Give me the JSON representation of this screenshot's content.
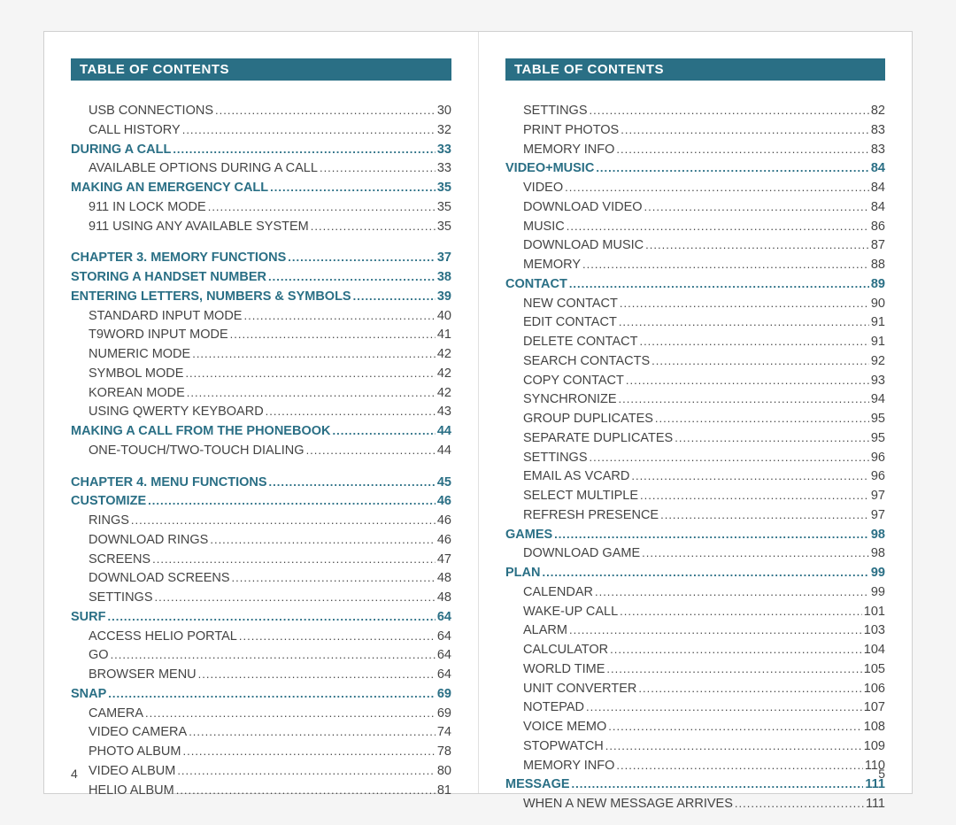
{
  "header_title": "TABLE OF CONTENTS",
  "colors": {
    "accent": "#2a6f85",
    "text": "#444444",
    "bg": "#ffffff"
  },
  "font": {
    "family": "Arial",
    "row_size_pt": 11,
    "header_size_pt": 12
  },
  "left_page": {
    "number": "4",
    "entries": [
      {
        "label": "USB CONNECTIONS",
        "page": "30",
        "type": "sub",
        "indent": 1
      },
      {
        "label": "CALL HISTORY",
        "page": "32",
        "type": "sub",
        "indent": 1
      },
      {
        "label": "DURING A CALL",
        "page": "33",
        "type": "section",
        "indent": 0
      },
      {
        "label": "AVAILABLE OPTIONS DURING A CALL",
        "page": "33",
        "type": "sub",
        "indent": 1
      },
      {
        "label": "MAKING AN EMERGENCY CALL",
        "page": "35",
        "type": "section",
        "indent": 0
      },
      {
        "label": "911 IN LOCK MODE",
        "page": "35",
        "type": "sub",
        "indent": 1
      },
      {
        "label": "911 USING ANY AVAILABLE SYSTEM",
        "page": "35",
        "type": "sub",
        "indent": 1
      },
      {
        "label": "",
        "page": "",
        "type": "gap",
        "indent": 0
      },
      {
        "label": "CHAPTER 3. MEMORY FUNCTIONS",
        "page": "37",
        "type": "section",
        "indent": 0
      },
      {
        "label": "STORING A HANDSET NUMBER",
        "page": "38",
        "type": "section",
        "indent": 0
      },
      {
        "label": "ENTERING LETTERS, NUMBERS & SYMBOLS",
        "page": "39",
        "type": "section",
        "indent": 0
      },
      {
        "label": "STANDARD INPUT MODE",
        "page": "40",
        "type": "sub",
        "indent": 1
      },
      {
        "label": "T9WORD INPUT MODE",
        "page": "41",
        "type": "sub",
        "indent": 1
      },
      {
        "label": "NUMERIC MODE",
        "page": "42",
        "type": "sub",
        "indent": 1
      },
      {
        "label": "SYMBOL MODE",
        "page": "42",
        "type": "sub",
        "indent": 1
      },
      {
        "label": "KOREAN MODE",
        "page": "42",
        "type": "sub",
        "indent": 1
      },
      {
        "label": "USING QWERTY KEYBOARD",
        "page": "43",
        "type": "sub",
        "indent": 1
      },
      {
        "label": "MAKING A CALL FROM THE PHONEBOOK",
        "page": "44",
        "type": "section",
        "indent": 0
      },
      {
        "label": "ONE-TOUCH/TWO-TOUCH DIALING",
        "page": "44",
        "type": "sub",
        "indent": 1
      },
      {
        "label": "",
        "page": "",
        "type": "gap",
        "indent": 0
      },
      {
        "label": "CHAPTER 4. MENU FUNCTIONS",
        "page": "45",
        "type": "section",
        "indent": 0
      },
      {
        "label": "CUSTOMIZE",
        "page": "46",
        "type": "section",
        "indent": 0
      },
      {
        "label": "RINGS",
        "page": "46",
        "type": "sub",
        "indent": 1
      },
      {
        "label": "DOWNLOAD RINGS",
        "page": "46",
        "type": "sub",
        "indent": 1
      },
      {
        "label": "SCREENS",
        "page": "47",
        "type": "sub",
        "indent": 1
      },
      {
        "label": "DOWNLOAD SCREENS",
        "page": "48",
        "type": "sub",
        "indent": 1
      },
      {
        "label": "SETTINGS",
        "page": "48",
        "type": "sub",
        "indent": 1
      },
      {
        "label": "SURF",
        "page": "64",
        "type": "section",
        "indent": 0
      },
      {
        "label": "ACCESS HELIO PORTAL",
        "page": "64",
        "type": "sub",
        "indent": 1
      },
      {
        "label": "GO",
        "page": "64",
        "type": "sub",
        "indent": 1
      },
      {
        "label": "BROWSER MENU",
        "page": "64",
        "type": "sub",
        "indent": 1
      },
      {
        "label": "SNAP",
        "page": "69",
        "type": "section",
        "indent": 0
      },
      {
        "label": "CAMERA",
        "page": "69",
        "type": "sub",
        "indent": 1
      },
      {
        "label": "VIDEO CAMERA",
        "page": "74",
        "type": "sub",
        "indent": 1
      },
      {
        "label": "PHOTO ALBUM",
        "page": "78",
        "type": "sub",
        "indent": 1
      },
      {
        "label": "VIDEO ALBUM",
        "page": "80",
        "type": "sub",
        "indent": 1
      },
      {
        "label": "HELIO ALBUM",
        "page": "81",
        "type": "sub",
        "indent": 1
      }
    ]
  },
  "right_page": {
    "number": "5",
    "entries": [
      {
        "label": "SETTINGS",
        "page": "82",
        "type": "sub",
        "indent": 1
      },
      {
        "label": "PRINT PHOTOS",
        "page": "83",
        "type": "sub",
        "indent": 1
      },
      {
        "label": "MEMORY INFO",
        "page": "83",
        "type": "sub",
        "indent": 1
      },
      {
        "label": "VIDEO+MUSIC",
        "page": "84",
        "type": "section",
        "indent": 0
      },
      {
        "label": "VIDEO",
        "page": "84",
        "type": "sub",
        "indent": 1
      },
      {
        "label": "DOWNLOAD VIDEO",
        "page": "84",
        "type": "sub",
        "indent": 1
      },
      {
        "label": "MUSIC",
        "page": "86",
        "type": "sub",
        "indent": 1
      },
      {
        "label": "DOWNLOAD MUSIC",
        "page": "87",
        "type": "sub",
        "indent": 1
      },
      {
        "label": "MEMORY",
        "page": "88",
        "type": "sub",
        "indent": 1
      },
      {
        "label": "CONTACT",
        "page": "89",
        "type": "section",
        "indent": 0
      },
      {
        "label": "NEW CONTACT",
        "page": "90",
        "type": "sub",
        "indent": 1
      },
      {
        "label": "EDIT CONTACT",
        "page": "91",
        "type": "sub",
        "indent": 1
      },
      {
        "label": "DELETE CONTACT",
        "page": "91",
        "type": "sub",
        "indent": 1
      },
      {
        "label": "SEARCH CONTACTS",
        "page": "92",
        "type": "sub",
        "indent": 1
      },
      {
        "label": "COPY CONTACT",
        "page": "93",
        "type": "sub",
        "indent": 1
      },
      {
        "label": "SYNCHRONIZE",
        "page": "94",
        "type": "sub",
        "indent": 1
      },
      {
        "label": "GROUP DUPLICATES",
        "page": "95",
        "type": "sub",
        "indent": 1
      },
      {
        "label": "SEPARATE DUPLICATES",
        "page": "95",
        "type": "sub",
        "indent": 1
      },
      {
        "label": "SETTINGS",
        "page": "96",
        "type": "sub",
        "indent": 1
      },
      {
        "label": "EMAIL AS VCARD",
        "page": "96",
        "type": "sub",
        "indent": 1
      },
      {
        "label": "SELECT MULTIPLE",
        "page": "97",
        "type": "sub",
        "indent": 1
      },
      {
        "label": "REFRESH PRESENCE",
        "page": "97",
        "type": "sub",
        "indent": 1
      },
      {
        "label": "GAMES",
        "page": "98",
        "type": "section",
        "indent": 0
      },
      {
        "label": "DOWNLOAD GAME",
        "page": "98",
        "type": "sub",
        "indent": 1
      },
      {
        "label": "PLAN",
        "page": "99",
        "type": "section",
        "indent": 0
      },
      {
        "label": "CALENDAR",
        "page": "99",
        "type": "sub",
        "indent": 1
      },
      {
        "label": "WAKE-UP CALL",
        "page": "101",
        "type": "sub",
        "indent": 1
      },
      {
        "label": "ALARM",
        "page": "103",
        "type": "sub",
        "indent": 1
      },
      {
        "label": "CALCULATOR",
        "page": "104",
        "type": "sub",
        "indent": 1
      },
      {
        "label": "WORLD TIME",
        "page": "105",
        "type": "sub",
        "indent": 1
      },
      {
        "label": "UNIT CONVERTER",
        "page": "106",
        "type": "sub",
        "indent": 1
      },
      {
        "label": "NOTEPAD",
        "page": "107",
        "type": "sub",
        "indent": 1
      },
      {
        "label": "VOICE MEMO",
        "page": "108",
        "type": "sub",
        "indent": 1
      },
      {
        "label": "STOPWATCH",
        "page": "109",
        "type": "sub",
        "indent": 1
      },
      {
        "label": "MEMORY INFO",
        "page": "110",
        "type": "sub",
        "indent": 1
      },
      {
        "label": "MESSAGE",
        "page": "111",
        "type": "section",
        "indent": 0
      },
      {
        "label": "WHEN A NEW MESSAGE ARRIVES",
        "page": "111",
        "type": "sub",
        "indent": 1
      }
    ]
  }
}
